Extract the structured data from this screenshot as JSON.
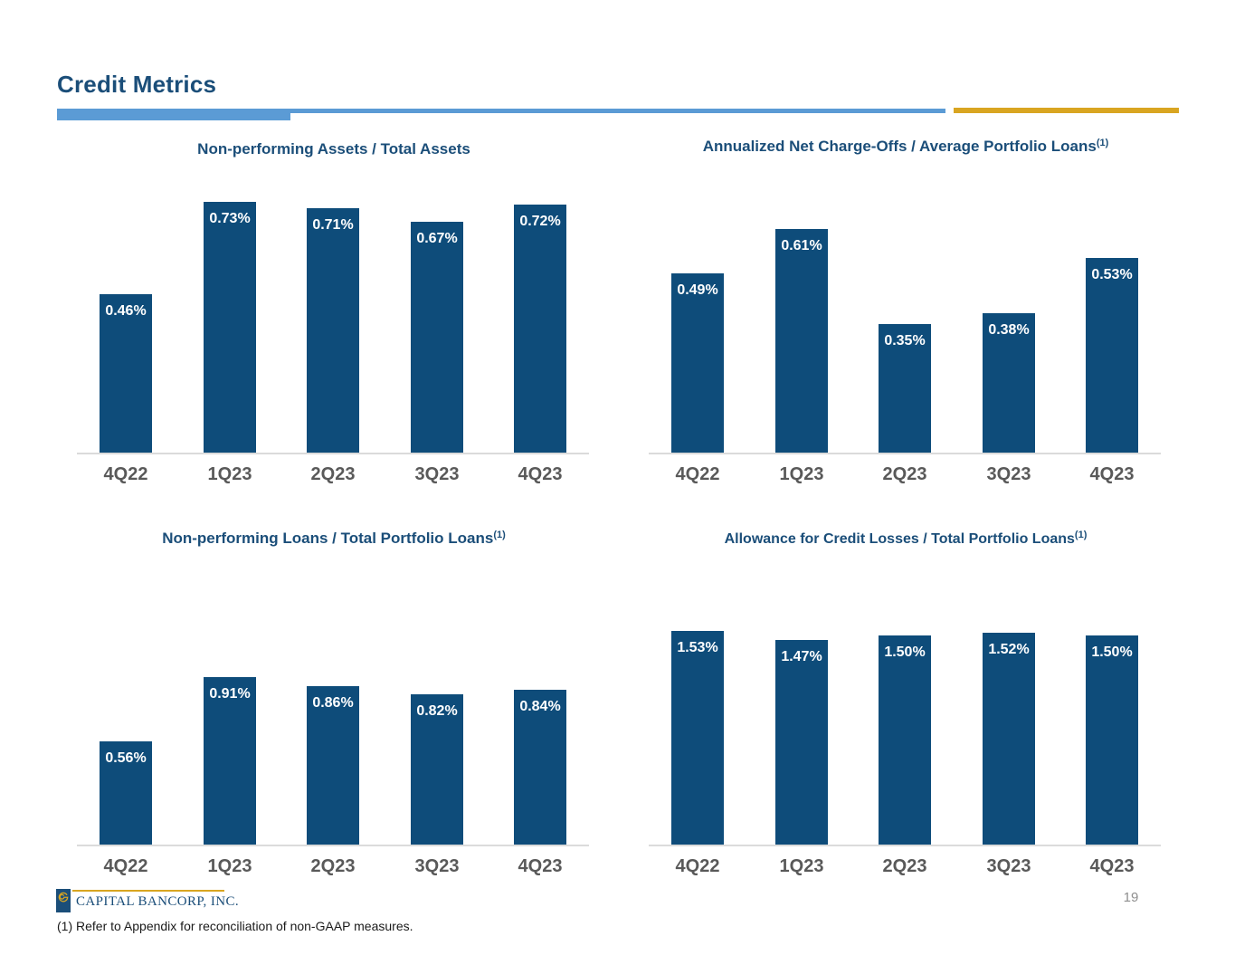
{
  "header": {
    "title": "Credit Metrics"
  },
  "colors": {
    "bar_fill": "#0E4C7A",
    "title_navy": "#1B4E79",
    "axis_label_gray": "#595959",
    "accent_blue": "#5B9BD5",
    "accent_gold": "#D9A521",
    "baseline_gray": "#DBDBDB",
    "value_label_white": "#FFFFFF"
  },
  "chart_data": [
    {
      "id": "c1",
      "type": "bar",
      "title": "Non-performing Assets / Total Assets",
      "title_sup": "",
      "categories": [
        "4Q22",
        "1Q23",
        "2Q23",
        "3Q23",
        "4Q23"
      ],
      "values": [
        0.46,
        0.73,
        0.71,
        0.67,
        0.72
      ],
      "labels": [
        "0.46%",
        "0.73%",
        "0.71%",
        "0.67%",
        "0.72%"
      ],
      "unit": "%",
      "ylim": [
        0,
        0.93
      ],
      "grid": false,
      "y_axis_shown": false,
      "value_labels_position": "inside-top"
    },
    {
      "id": "c2",
      "type": "bar",
      "title": "Annualized Net Charge-Offs / Average Portfolio Loans",
      "title_sup": "(1)",
      "categories": [
        "4Q22",
        "1Q23",
        "2Q23",
        "3Q23",
        "4Q23"
      ],
      "values": [
        0.49,
        0.61,
        0.35,
        0.38,
        0.53
      ],
      "labels": [
        "0.49%",
        "0.61%",
        "0.35%",
        "0.38%",
        "0.53%"
      ],
      "unit": "%",
      "ylim": [
        0,
        0.87
      ],
      "grid": false,
      "y_axis_shown": false,
      "value_labels_position": "inside-top"
    },
    {
      "id": "c3",
      "type": "bar",
      "title": "Non-performing Loans / Total Portfolio Loans",
      "title_sup": "(1)",
      "categories": [
        "4Q22",
        "1Q23",
        "2Q23",
        "3Q23",
        "4Q23"
      ],
      "values": [
        0.56,
        0.91,
        0.86,
        0.82,
        0.84
      ],
      "labels": [
        "0.56%",
        "0.91%",
        "0.86%",
        "0.82%",
        "0.84%"
      ],
      "unit": "%",
      "ylim": [
        0,
        1.76
      ],
      "grid": false,
      "y_axis_shown": false,
      "value_labels_position": "inside-top"
    },
    {
      "id": "c4",
      "type": "bar",
      "title": "Allowance for Credit Losses / Total Portfolio Loans",
      "title_sup": "(1)",
      "categories": [
        "4Q22",
        "1Q23",
        "2Q23",
        "3Q23",
        "4Q23"
      ],
      "values": [
        1.53,
        1.47,
        1.5,
        1.52,
        1.5
      ],
      "labels": [
        "1.53%",
        "1.47%",
        "1.50%",
        "1.52%",
        "1.50%"
      ],
      "unit": "%",
      "ylim": [
        0,
        2.32
      ],
      "grid": false,
      "y_axis_shown": false,
      "value_labels_position": "inside-top"
    }
  ],
  "footer": {
    "logo_text": "CAPITAL BANCORP, INC.",
    "logo_mark": "gold-spiral-g-icon",
    "footnote": "(1) Refer to Appendix for reconciliation of non-GAAP measures.",
    "page_number": "19"
  }
}
